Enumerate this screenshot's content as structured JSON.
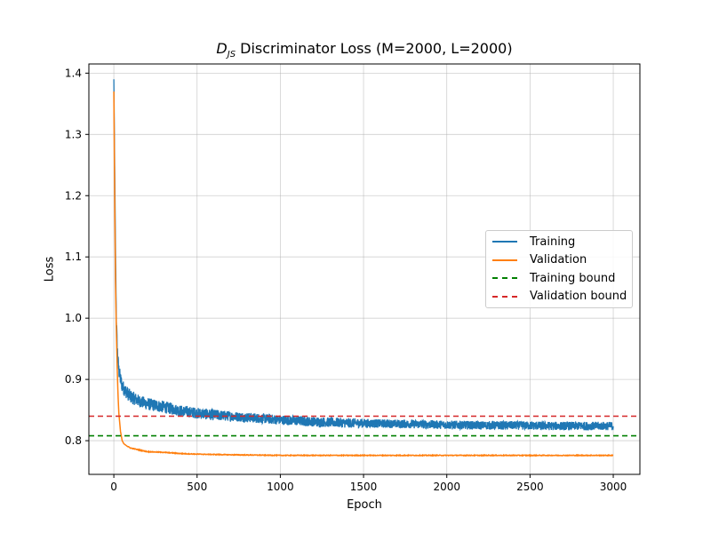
{
  "chart_data": {
    "type": "line",
    "title_parts": {
      "symbol": "D",
      "subscript": "JS",
      "rest": " Discriminator Loss (M=2000, L=2000)"
    },
    "xlabel": "Epoch",
    "ylabel": "Loss",
    "xlim": [
      -150,
      3160
    ],
    "ylim": [
      0.745,
      1.415
    ],
    "xticks": [
      0,
      500,
      1000,
      1500,
      2000,
      2500,
      3000
    ],
    "yticks": [
      0.8,
      0.9,
      1.0,
      1.1,
      1.2,
      1.3,
      1.4
    ],
    "ytick_labels": [
      "0.8",
      "0.9",
      "1.0",
      "1.1",
      "1.2",
      "1.3",
      "1.4"
    ],
    "grid": true,
    "legend_position": "center-right",
    "series": [
      {
        "name": "Training",
        "style": "solid",
        "color": "#1f77b4",
        "x": [
          0,
          5,
          10,
          15,
          20,
          25,
          30,
          40,
          50,
          60,
          80,
          100,
          150,
          200,
          300,
          400,
          500,
          600,
          700,
          800,
          900,
          1000,
          1200,
          1400,
          1600,
          1800,
          2000,
          2200,
          2400,
          2600,
          2800,
          3000
        ],
        "y": [
          1.39,
          1.25,
          1.11,
          1.0,
          0.955,
          0.93,
          0.915,
          0.9,
          0.89,
          0.885,
          0.878,
          0.872,
          0.865,
          0.86,
          0.855,
          0.849,
          0.845,
          0.842,
          0.84,
          0.838,
          0.836,
          0.834,
          0.831,
          0.829,
          0.828,
          0.827,
          0.826,
          0.825,
          0.825,
          0.824,
          0.824,
          0.824
        ],
        "noise_amplitude": [
          0.0,
          0.0,
          0.0,
          0.01,
          0.012,
          0.012,
          0.012,
          0.012,
          0.012,
          0.011,
          0.011,
          0.011,
          0.01,
          0.01,
          0.01,
          0.009,
          0.009,
          0.009,
          0.008,
          0.008,
          0.008,
          0.008,
          0.008,
          0.008,
          0.007,
          0.007,
          0.007,
          0.007,
          0.007,
          0.007,
          0.007,
          0.007
        ]
      },
      {
        "name": "Validation",
        "style": "solid",
        "color": "#ff7f0e",
        "x": [
          0,
          5,
          10,
          15,
          20,
          25,
          30,
          40,
          50,
          60,
          80,
          100,
          150,
          200,
          300,
          400,
          500,
          700,
          1000,
          1500,
          2000,
          2500,
          3000
        ],
        "y": [
          1.37,
          1.2,
          1.06,
          0.98,
          0.92,
          0.875,
          0.845,
          0.815,
          0.8,
          0.795,
          0.791,
          0.788,
          0.785,
          0.782,
          0.781,
          0.779,
          0.778,
          0.777,
          0.776,
          0.776,
          0.776,
          0.776,
          0.776
        ]
      },
      {
        "name": "Training bound",
        "style": "dashed",
        "color": "#008000",
        "constant": 0.808
      },
      {
        "name": "Validation bound",
        "style": "dashed",
        "color": "#d62728",
        "constant": 0.84
      }
    ]
  }
}
